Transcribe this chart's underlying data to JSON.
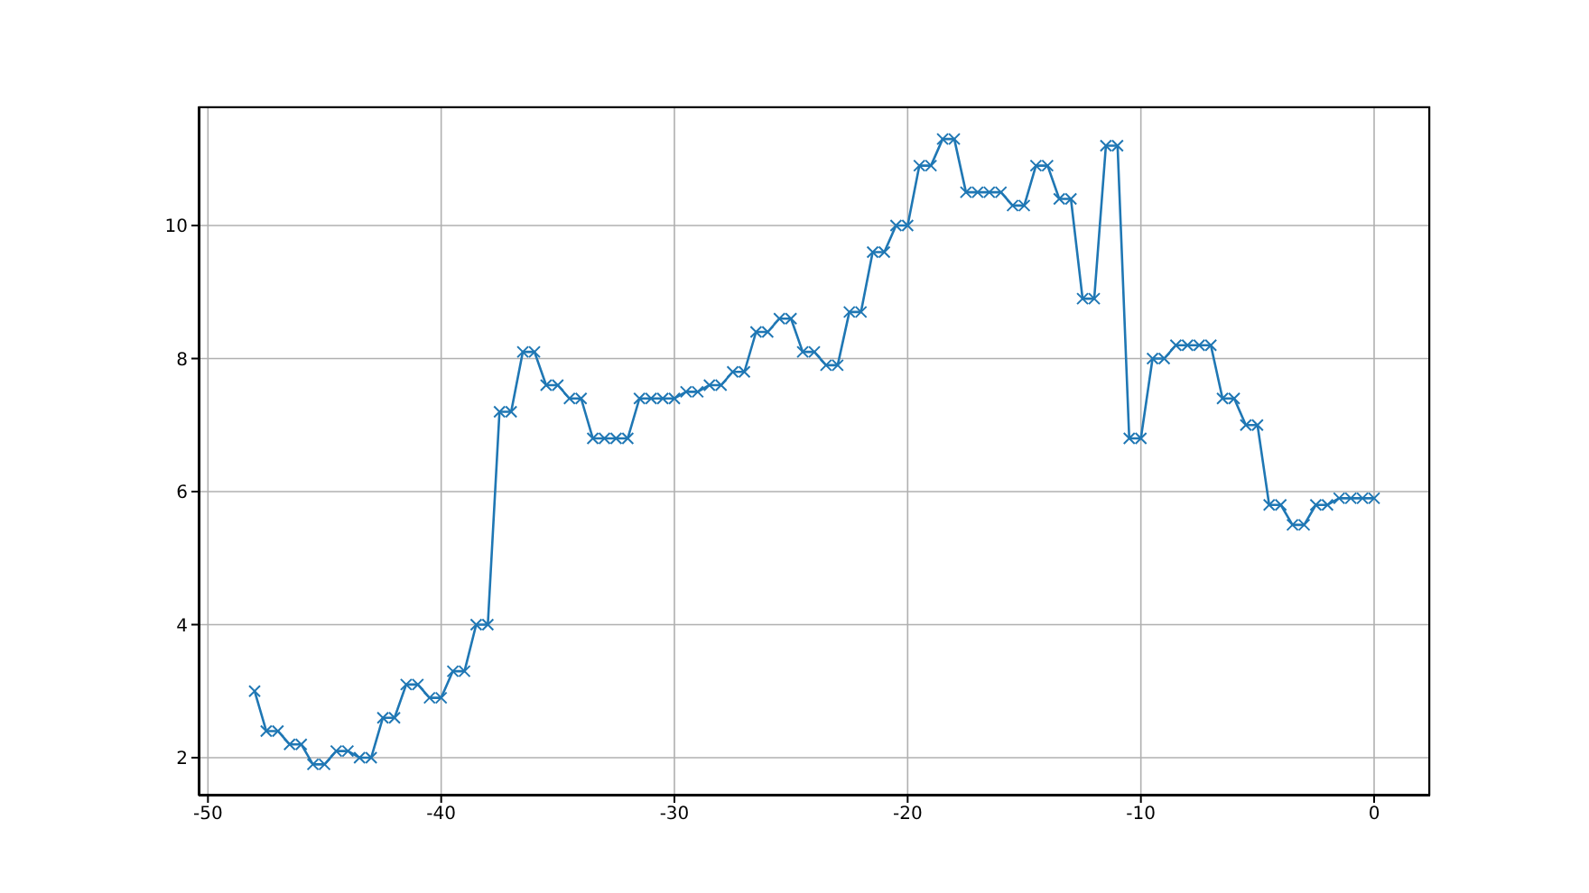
{
  "chart_data": {
    "type": "line",
    "x": [
      -48,
      -47.5,
      -47,
      -46.5,
      -46,
      -45.5,
      -45,
      -44.5,
      -44,
      -43.5,
      -43,
      -42.5,
      -42,
      -41.5,
      -41,
      -40.5,
      -40,
      -39.5,
      -39,
      -38.5,
      -38,
      -37.5,
      -37,
      -36.5,
      -36,
      -35.5,
      -35,
      -34.5,
      -34,
      -33.5,
      -33,
      -32.5,
      -32,
      -31.5,
      -31,
      -30.5,
      -30,
      -29.5,
      -29,
      -28.5,
      -28,
      -27.5,
      -27,
      -26.5,
      -26,
      -25.5,
      -25,
      -24.5,
      -24,
      -23.5,
      -23,
      -22.5,
      -22,
      -21.5,
      -21,
      -20.5,
      -20,
      -19.5,
      -19,
      -18.5,
      -18,
      -17.5,
      -17,
      -16.5,
      -16,
      -15.5,
      -15,
      -14.5,
      -14,
      -13.5,
      -13,
      -12.5,
      -12,
      -11.5,
      -11,
      -10.5,
      -10,
      -9.5,
      -9,
      -8.5,
      -8,
      -7.5,
      -7,
      -6.5,
      -6,
      -5.5,
      -5,
      -4.5,
      -4,
      -3.5,
      -3,
      -2.5,
      -2,
      -1.5,
      -1,
      -0.5,
      0
    ],
    "series": [
      {
        "color": "#1f77b4",
        "values": [
          3.0,
          2.4,
          2.4,
          2.2,
          2.2,
          1.9,
          1.9,
          2.1,
          2.1,
          2.0,
          2.0,
          2.6,
          2.6,
          3.1,
          3.1,
          2.9,
          2.9,
          3.3,
          3.3,
          4.0,
          4.0,
          7.2,
          7.2,
          8.1,
          8.1,
          7.6,
          7.6,
          7.4,
          7.4,
          6.8,
          6.8,
          6.8,
          6.8,
          7.4,
          7.4,
          7.4,
          7.4,
          7.5,
          7.5,
          7.6,
          7.6,
          7.8,
          7.8,
          8.4,
          8.4,
          8.6,
          8.6,
          8.1,
          8.1,
          7.9,
          7.9,
          8.7,
          8.7,
          9.6,
          9.6,
          10.0,
          10.0,
          10.9,
          10.9,
          11.3,
          11.3,
          10.5,
          10.5,
          10.5,
          10.5,
          10.3,
          10.3,
          10.9,
          10.9,
          10.4,
          10.4,
          8.9,
          8.9,
          11.2,
          11.2,
          6.8,
          6.8,
          8.0,
          8.0,
          8.2,
          8.2,
          8.2,
          8.2,
          7.4,
          7.4,
          7.0,
          7.0,
          5.8,
          5.8,
          5.5,
          5.5,
          5.8,
          5.8,
          5.9,
          5.9,
          5.9,
          5.9
        ]
      }
    ],
    "xlim": [
      -50.4,
      2.4
    ],
    "xticks": [
      -50,
      -40,
      -30,
      -20,
      -10,
      0
    ],
    "ylim": [
      1.43,
      11.79
    ],
    "yticks": [
      2,
      4,
      6,
      8,
      10
    ],
    "grid": true,
    "marker": "cross",
    "line_style": "solid"
  }
}
